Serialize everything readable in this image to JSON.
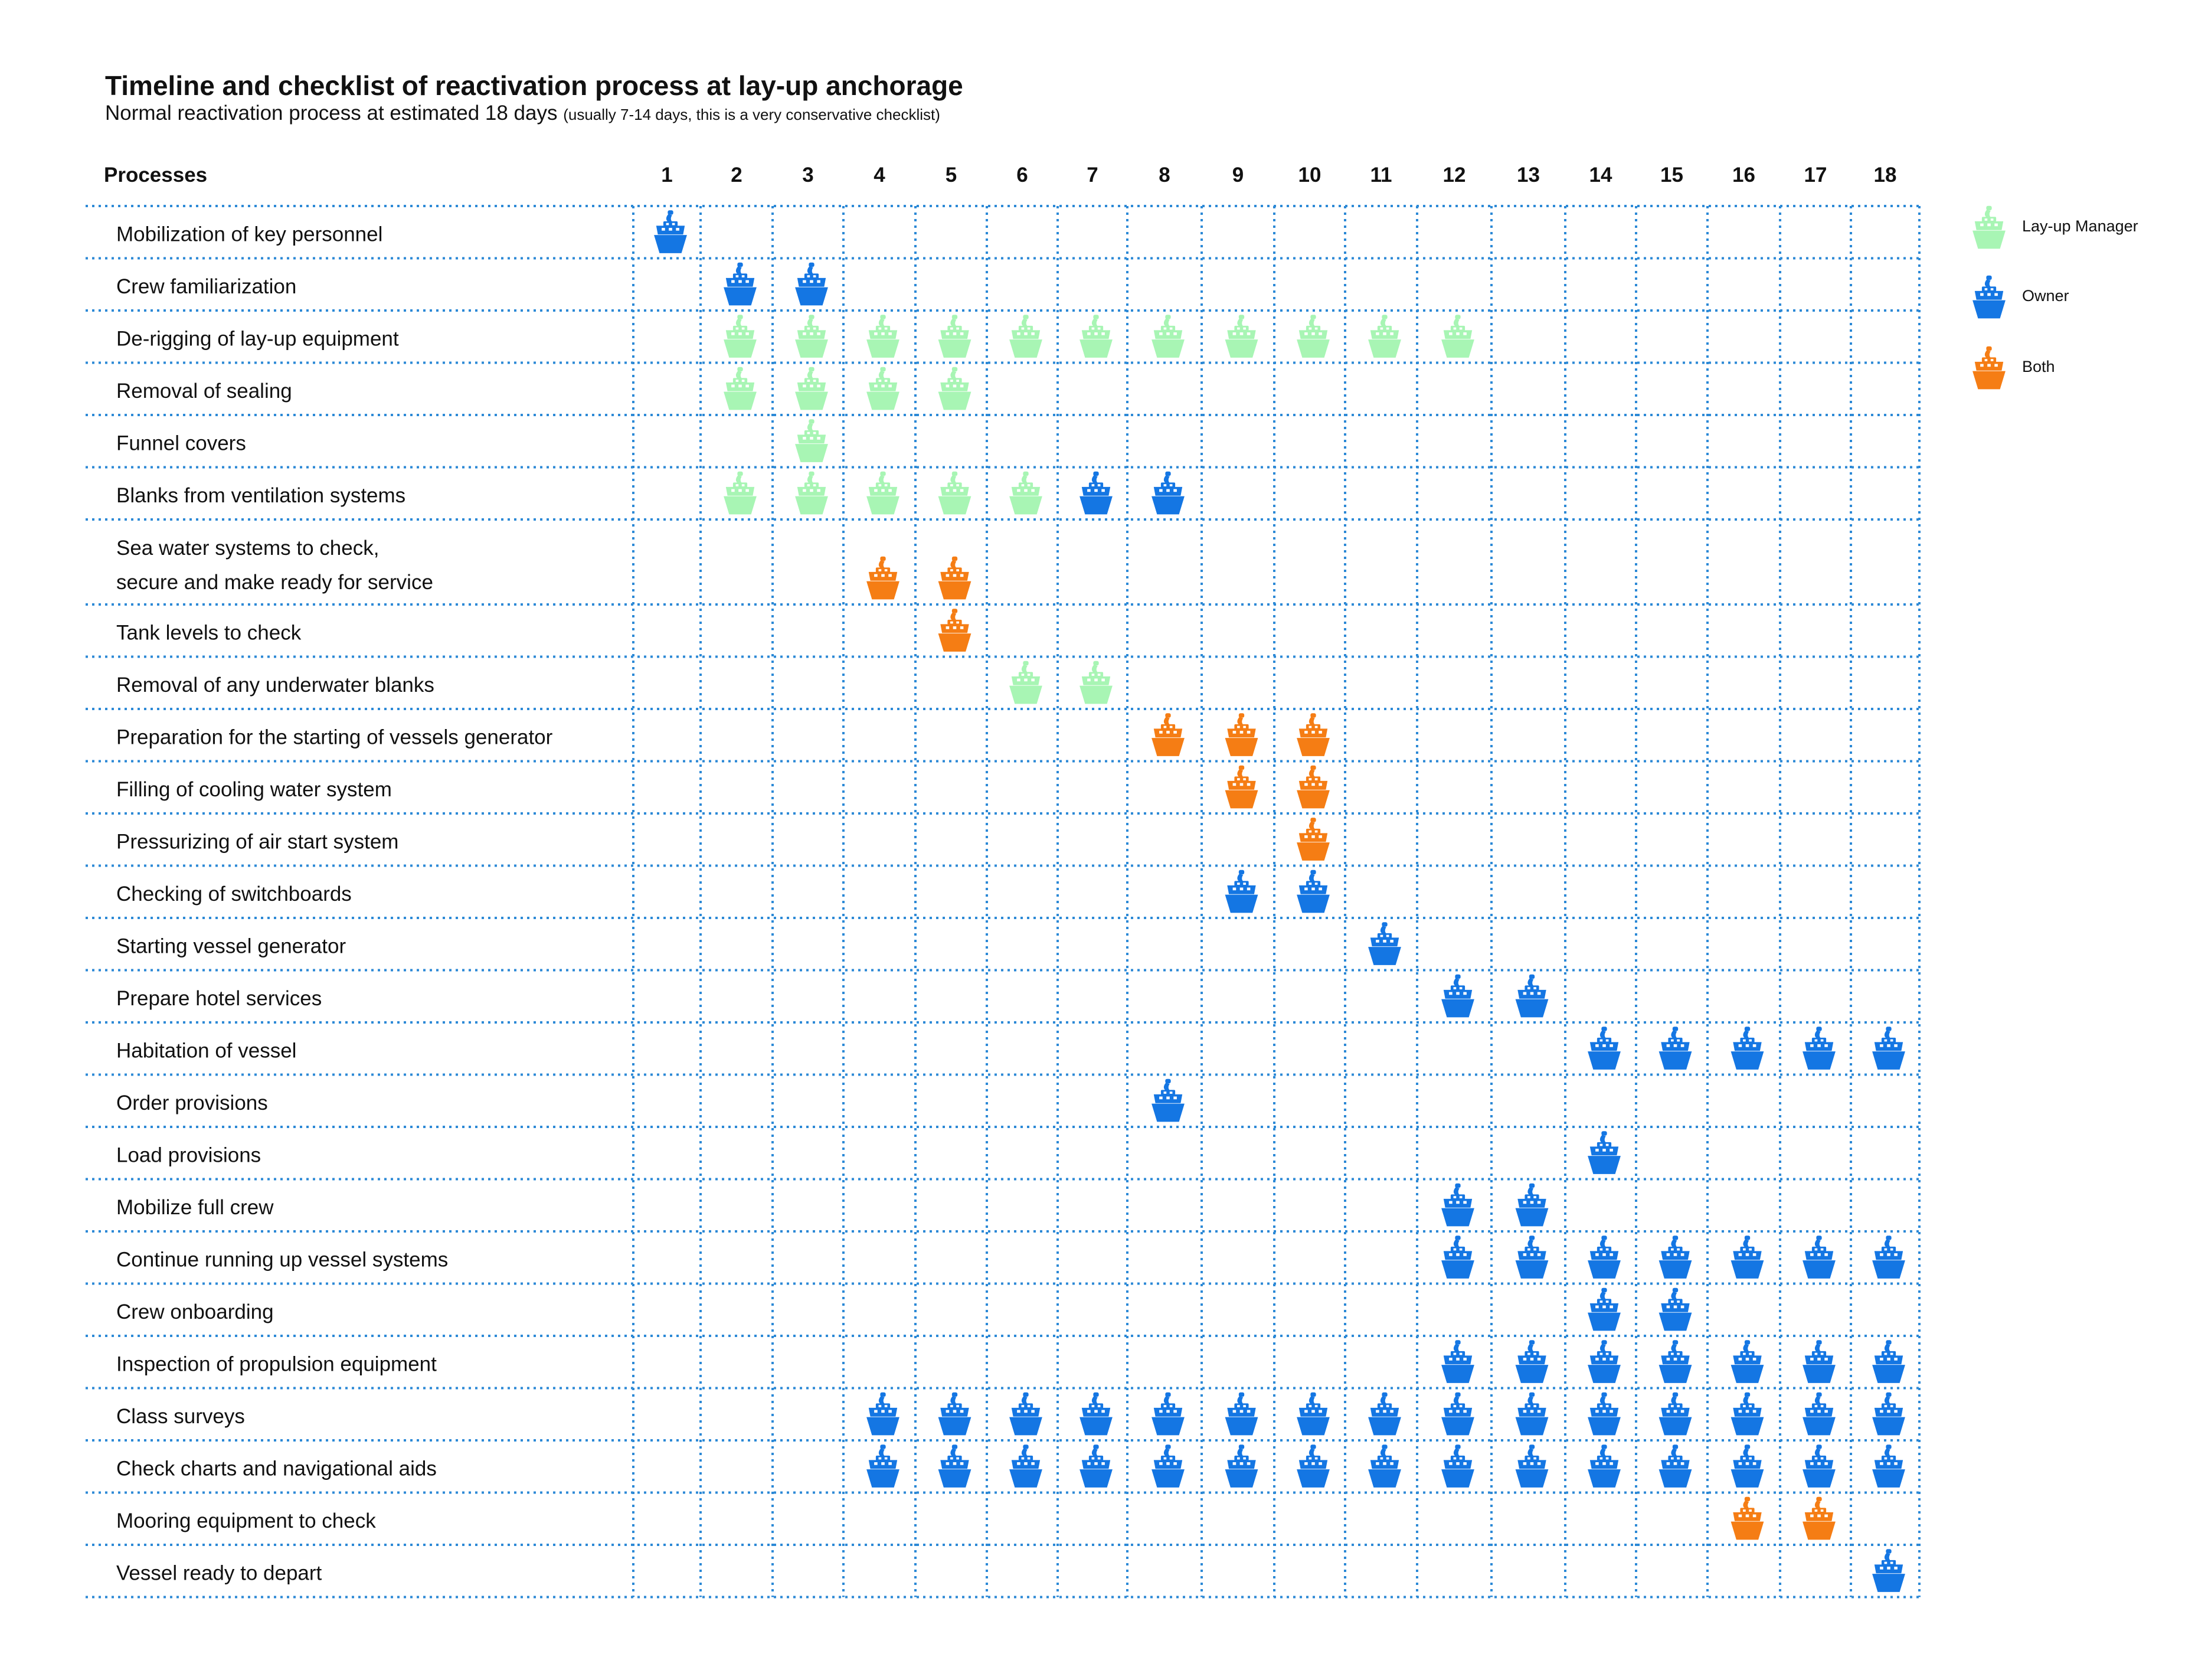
{
  "title": "Timeline and checklist of reactivation process at lay-up anchorage",
  "subtitle": "Normal reactivation process at estimated 18 days",
  "subtitle_note": "(usually 7-14 days, this is a very conservative checklist)",
  "colors": {
    "manager": "#a8f5b4",
    "owner": "#1476e3",
    "both": "#f57d14",
    "grid": "#2c89d6"
  },
  "legend": [
    {
      "key": "manager",
      "label": "Lay-up Manager",
      "icon": "ship-icon"
    },
    {
      "key": "owner",
      "label": "Owner",
      "icon": "ship-icon"
    },
    {
      "key": "both",
      "label": "Both",
      "icon": "ship-icon"
    }
  ],
  "chart_data": {
    "type": "table",
    "row_header": "Processes",
    "days": [
      1,
      2,
      3,
      4,
      5,
      6,
      7,
      8,
      9,
      10,
      11,
      12,
      13,
      14,
      15,
      16,
      17,
      18
    ],
    "rows": [
      {
        "label": "Mobilization of key personnel",
        "cells": [
          [
            1,
            "owner"
          ]
        ]
      },
      {
        "label": "Crew familiarization",
        "cells": [
          [
            2,
            "owner"
          ],
          [
            3,
            "owner"
          ]
        ]
      },
      {
        "label": "De-rigging of lay-up equipment",
        "cells": [
          [
            2,
            "manager"
          ],
          [
            3,
            "manager"
          ],
          [
            4,
            "manager"
          ],
          [
            5,
            "manager"
          ],
          [
            6,
            "manager"
          ],
          [
            7,
            "manager"
          ],
          [
            8,
            "manager"
          ],
          [
            9,
            "manager"
          ],
          [
            10,
            "manager"
          ],
          [
            11,
            "manager"
          ],
          [
            12,
            "manager"
          ]
        ]
      },
      {
        "label": "Removal of sealing",
        "cells": [
          [
            2,
            "manager"
          ],
          [
            3,
            "manager"
          ],
          [
            4,
            "manager"
          ],
          [
            5,
            "manager"
          ]
        ]
      },
      {
        "label": "Funnel covers",
        "cells": [
          [
            3,
            "manager"
          ]
        ]
      },
      {
        "label": "Blanks from ventilation systems",
        "cells": [
          [
            2,
            "manager"
          ],
          [
            3,
            "manager"
          ],
          [
            4,
            "manager"
          ],
          [
            5,
            "manager"
          ],
          [
            6,
            "manager"
          ],
          [
            7,
            "owner"
          ],
          [
            8,
            "owner"
          ]
        ]
      },
      {
        "label": "Sea water systems to check,",
        "label2": "secure and make ready for service",
        "cells": [
          [
            4,
            "both"
          ],
          [
            5,
            "both"
          ]
        ]
      },
      {
        "label": "Tank levels to check",
        "cells": [
          [
            5,
            "both"
          ]
        ]
      },
      {
        "label": "Removal of any underwater blanks",
        "cells": [
          [
            6,
            "manager"
          ],
          [
            7,
            "manager"
          ]
        ]
      },
      {
        "label": "Preparation for the starting of vessels generator",
        "cells": [
          [
            8,
            "both"
          ],
          [
            9,
            "both"
          ],
          [
            10,
            "both"
          ]
        ]
      },
      {
        "label": "Filling of cooling water system",
        "cells": [
          [
            9,
            "both"
          ],
          [
            10,
            "both"
          ]
        ]
      },
      {
        "label": "Pressurizing of air start system",
        "cells": [
          [
            10,
            "both"
          ]
        ]
      },
      {
        "label": "Checking of switchboards",
        "cells": [
          [
            9,
            "owner"
          ],
          [
            10,
            "owner"
          ]
        ]
      },
      {
        "label": "Starting vessel generator",
        "cells": [
          [
            11,
            "owner"
          ]
        ]
      },
      {
        "label": "Prepare hotel services",
        "cells": [
          [
            12,
            "owner"
          ],
          [
            13,
            "owner"
          ]
        ]
      },
      {
        "label": "Habitation of vessel",
        "cells": [
          [
            14,
            "owner"
          ],
          [
            15,
            "owner"
          ],
          [
            16,
            "owner"
          ],
          [
            17,
            "owner"
          ],
          [
            18,
            "owner"
          ]
        ]
      },
      {
        "label": "Order provisions",
        "cells": [
          [
            8,
            "owner"
          ]
        ]
      },
      {
        "label": "Load provisions",
        "cells": [
          [
            14,
            "owner"
          ]
        ]
      },
      {
        "label": "Mobilize full crew",
        "cells": [
          [
            12,
            "owner"
          ],
          [
            13,
            "owner"
          ]
        ]
      },
      {
        "label": "Continue running up vessel systems",
        "cells": [
          [
            12,
            "owner"
          ],
          [
            13,
            "owner"
          ],
          [
            14,
            "owner"
          ],
          [
            15,
            "owner"
          ],
          [
            16,
            "owner"
          ],
          [
            17,
            "owner"
          ],
          [
            18,
            "owner"
          ]
        ]
      },
      {
        "label": "Crew onboarding",
        "cells": [
          [
            14,
            "owner"
          ],
          [
            15,
            "owner"
          ]
        ]
      },
      {
        "label": "Inspection of propulsion equipment",
        "cells": [
          [
            12,
            "owner"
          ],
          [
            13,
            "owner"
          ],
          [
            14,
            "owner"
          ],
          [
            15,
            "owner"
          ],
          [
            16,
            "owner"
          ],
          [
            17,
            "owner"
          ],
          [
            18,
            "owner"
          ]
        ]
      },
      {
        "label": "Class surveys",
        "cells": [
          [
            4,
            "owner"
          ],
          [
            5,
            "owner"
          ],
          [
            6,
            "owner"
          ],
          [
            7,
            "owner"
          ],
          [
            8,
            "owner"
          ],
          [
            9,
            "owner"
          ],
          [
            10,
            "owner"
          ],
          [
            11,
            "owner"
          ],
          [
            12,
            "owner"
          ],
          [
            13,
            "owner"
          ],
          [
            14,
            "owner"
          ],
          [
            15,
            "owner"
          ],
          [
            16,
            "owner"
          ],
          [
            17,
            "owner"
          ],
          [
            18,
            "owner"
          ]
        ]
      },
      {
        "label": "Check charts and navigational aids",
        "cells": [
          [
            4,
            "owner"
          ],
          [
            5,
            "owner"
          ],
          [
            6,
            "owner"
          ],
          [
            7,
            "owner"
          ],
          [
            8,
            "owner"
          ],
          [
            9,
            "owner"
          ],
          [
            10,
            "owner"
          ],
          [
            11,
            "owner"
          ],
          [
            12,
            "owner"
          ],
          [
            13,
            "owner"
          ],
          [
            14,
            "owner"
          ],
          [
            15,
            "owner"
          ],
          [
            16,
            "owner"
          ],
          [
            17,
            "owner"
          ],
          [
            18,
            "owner"
          ]
        ]
      },
      {
        "label": "Mooring equipment to check",
        "cells": [
          [
            16,
            "both"
          ],
          [
            17,
            "both"
          ]
        ]
      },
      {
        "label": "Vessel ready to depart",
        "cells": [
          [
            18,
            "owner"
          ]
        ]
      }
    ]
  }
}
